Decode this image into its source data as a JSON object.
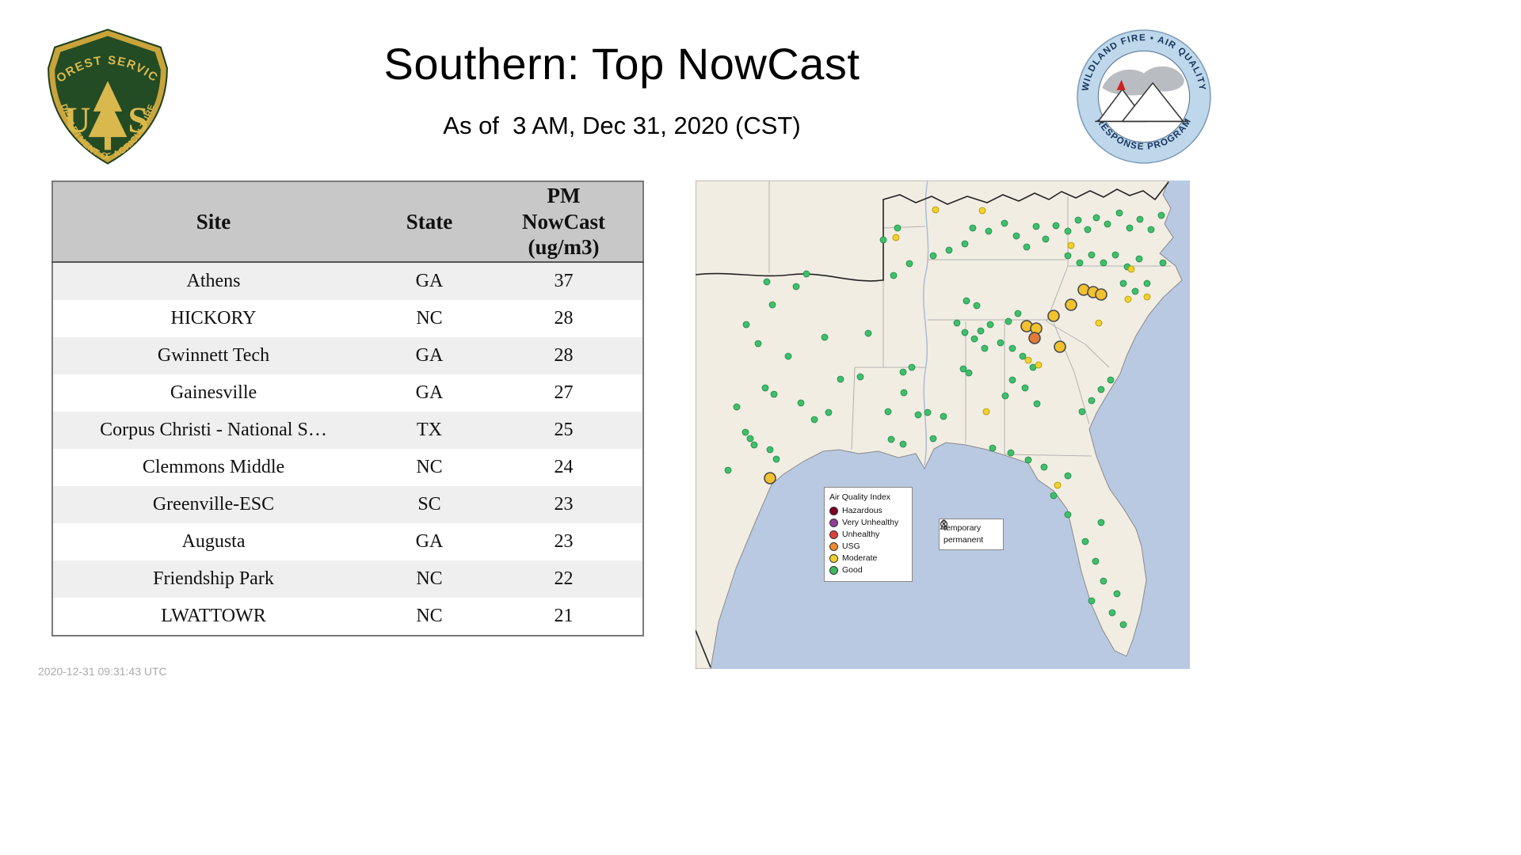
{
  "header": {
    "title": "Southern: Top NowCast",
    "subtitle": "As of  3 AM, Dec 31, 2020 (CST)",
    "fs_logo": {
      "arc_top": "FOREST SERVICE",
      "letter_left": "U",
      "letter_right": "S",
      "arc_bottom": "DEPARTMENT OF AGRICULTURE"
    },
    "wf_logo": {
      "arc_top": "WILDLAND FIRE • AIR QUALITY",
      "arc_bottom": "RESPONSE PROGRAM"
    }
  },
  "table": {
    "columns": [
      "Site",
      "State",
      "PM NowCast (ug/m3)"
    ],
    "rows": [
      [
        "Athens",
        "GA",
        "37"
      ],
      [
        "HICKORY",
        "NC",
        "28"
      ],
      [
        "Gwinnett Tech",
        "GA",
        "28"
      ],
      [
        "Gainesville",
        "GA",
        "27"
      ],
      [
        "Corpus Christi - National S…",
        "TX",
        "25"
      ],
      [
        "Clemmons Middle",
        "NC",
        "24"
      ],
      [
        "Greenville-ESC",
        "SC",
        "23"
      ],
      [
        "Augusta",
        "GA",
        "23"
      ],
      [
        "Friendship Park",
        "NC",
        "22"
      ],
      [
        "LWATTOWR",
        "NC",
        "21"
      ]
    ]
  },
  "footer": {
    "timestamp": "2020-12-31 09:31:43 UTC"
  },
  "map": {
    "legend": {
      "title": "Air Quality Index",
      "items": [
        {
          "label": "Hazardous",
          "color": "#7e0023"
        },
        {
          "label": "Very Unhealthy",
          "color": "#8f3f97"
        },
        {
          "label": "Unhealthy",
          "color": "#e03c3c"
        },
        {
          "label": "USG",
          "color": "#f08a2e"
        },
        {
          "label": "Moderate",
          "color": "#f2d12e"
        },
        {
          "label": "Good",
          "color": "#3cb95d"
        }
      ]
    },
    "marker_legend": {
      "items": [
        {
          "label": "temporary",
          "shape": "circle"
        },
        {
          "label": "permanent",
          "shape": "person"
        }
      ]
    },
    "colors": {
      "good": "#3fbf6b",
      "good_edge": "#22884a",
      "moderate": "#f4d12c",
      "moderate_edge": "#b09200",
      "moderate_big": "#f2c12e",
      "usg_big": "#e07b39",
      "big_edge": "#4a4a4a"
    },
    "dots": [
      [
        90,
        128,
        "g"
      ],
      [
        127,
        134,
        "g"
      ],
      [
        97,
        157,
        "g"
      ],
      [
        64,
        182,
        "g"
      ],
      [
        79,
        206,
        "g"
      ],
      [
        140,
        118,
        "g"
      ],
      [
        163,
        198,
        "g"
      ],
      [
        88,
        262,
        "g"
      ],
      [
        99,
        270,
        "g"
      ],
      [
        133,
        281,
        "g"
      ],
      [
        168,
        293,
        "g"
      ],
      [
        63,
        318,
        "g"
      ],
      [
        69,
        326,
        "g"
      ],
      [
        74,
        334,
        "g"
      ],
      [
        41,
        366,
        "g"
      ],
      [
        150,
        302,
        "g"
      ],
      [
        183,
        251,
        "g"
      ],
      [
        208,
        248,
        "g"
      ],
      [
        117,
        222,
        "g"
      ],
      [
        52,
        286,
        "g"
      ],
      [
        243,
        292,
        "g"
      ],
      [
        263,
        268,
        "g"
      ],
      [
        281,
        296,
        "g"
      ],
      [
        293,
        293,
        "g"
      ],
      [
        313,
        298,
        "g"
      ],
      [
        338,
        238,
        "g"
      ],
      [
        345,
        243,
        "g"
      ],
      [
        273,
        236,
        "g"
      ],
      [
        262,
        242,
        "g"
      ],
      [
        247,
        327,
        "g"
      ],
      [
        262,
        333,
        "g"
      ],
      [
        300,
        326,
        "g"
      ],
      [
        218,
        193,
        "g"
      ],
      [
        250,
        120,
        "g"
      ],
      [
        270,
        105,
        "g"
      ],
      [
        300,
        95,
        "g"
      ],
      [
        320,
        88,
        "g"
      ],
      [
        340,
        80,
        "g"
      ],
      [
        237,
        75,
        "g"
      ],
      [
        255,
        60,
        "g"
      ],
      [
        330,
        180,
        "g"
      ],
      [
        360,
        190,
        "g"
      ],
      [
        340,
        192,
        "g"
      ],
      [
        372,
        182,
        "g"
      ],
      [
        395,
        178,
        "g"
      ],
      [
        407,
        168,
        "g"
      ],
      [
        352,
        200,
        "g"
      ],
      [
        365,
        212,
        "g"
      ],
      [
        385,
        205,
        "g"
      ],
      [
        342,
        152,
        "g"
      ],
      [
        355,
        158,
        "g"
      ],
      [
        350,
        60,
        "g"
      ],
      [
        370,
        64,
        "g"
      ],
      [
        390,
        54,
        "g"
      ],
      [
        405,
        70,
        "g"
      ],
      [
        418,
        84,
        "g"
      ],
      [
        430,
        58,
        "g"
      ],
      [
        442,
        74,
        "g"
      ],
      [
        455,
        57,
        "g"
      ],
      [
        470,
        64,
        "g"
      ],
      [
        483,
        50,
        "g"
      ],
      [
        495,
        62,
        "g"
      ],
      [
        506,
        47,
        "g"
      ],
      [
        520,
        55,
        "g"
      ],
      [
        535,
        41,
        "g"
      ],
      [
        548,
        60,
        "g"
      ],
      [
        561,
        49,
        "g"
      ],
      [
        575,
        62,
        "g"
      ],
      [
        588,
        44,
        "g"
      ],
      [
        470,
        95,
        "g"
      ],
      [
        485,
        104,
        "g"
      ],
      [
        500,
        94,
        "g"
      ],
      [
        515,
        104,
        "g"
      ],
      [
        530,
        94,
        "g"
      ],
      [
        545,
        109,
        "g"
      ],
      [
        560,
        99,
        "g"
      ],
      [
        590,
        104,
        "g"
      ],
      [
        540,
        130,
        "g"
      ],
      [
        555,
        140,
        "g"
      ],
      [
        570,
        130,
        "g"
      ],
      [
        400,
        212,
        "g"
      ],
      [
        413,
        222,
        "g"
      ],
      [
        426,
        236,
        "g"
      ],
      [
        400,
        252,
        "g"
      ],
      [
        416,
        262,
        "g"
      ],
      [
        391,
        272,
        "g"
      ],
      [
        431,
        282,
        "g"
      ],
      [
        488,
        292,
        "g"
      ],
      [
        500,
        278,
        "g"
      ],
      [
        512,
        264,
        "g"
      ],
      [
        524,
        252,
        "g"
      ],
      [
        452,
        398,
        "g"
      ],
      [
        470,
        422,
        "g"
      ],
      [
        492,
        456,
        "g"
      ],
      [
        505,
        481,
        "g"
      ],
      [
        515,
        506,
        "g"
      ],
      [
        500,
        531,
        "g"
      ],
      [
        526,
        546,
        "g"
      ],
      [
        540,
        561,
        "g"
      ],
      [
        470,
        373,
        "g"
      ],
      [
        440,
        362,
        "g"
      ],
      [
        420,
        353,
        "g"
      ],
      [
        398,
        344,
        "g"
      ],
      [
        375,
        338,
        "g"
      ],
      [
        512,
        432,
        "g"
      ],
      [
        532,
        522,
        "g"
      ],
      [
        94,
        340,
        "g"
      ],
      [
        102,
        352,
        "g"
      ],
      [
        362,
        38,
        "m"
      ],
      [
        474,
        82,
        "m"
      ],
      [
        550,
        112,
        "m"
      ],
      [
        570,
        147,
        "m"
      ],
      [
        420,
        227,
        "m"
      ],
      [
        433,
        233,
        "m"
      ],
      [
        509,
        180,
        "m"
      ],
      [
        546,
        150,
        "m"
      ],
      [
        367,
        292,
        "m"
      ],
      [
        457,
        385,
        "m"
      ],
      [
        303,
        37,
        "m"
      ],
      [
        253,
        72,
        "m"
      ],
      [
        490,
        138,
        "M"
      ],
      [
        502,
        141,
        "M"
      ],
      [
        512,
        144,
        "M"
      ],
      [
        474,
        157,
        "M"
      ],
      [
        452,
        171,
        "M"
      ],
      [
        418,
        184,
        "M"
      ],
      [
        430,
        187,
        "M"
      ],
      [
        460,
        210,
        "M"
      ],
      [
        94,
        376,
        "M"
      ],
      [
        428,
        199,
        "U"
      ]
    ]
  }
}
